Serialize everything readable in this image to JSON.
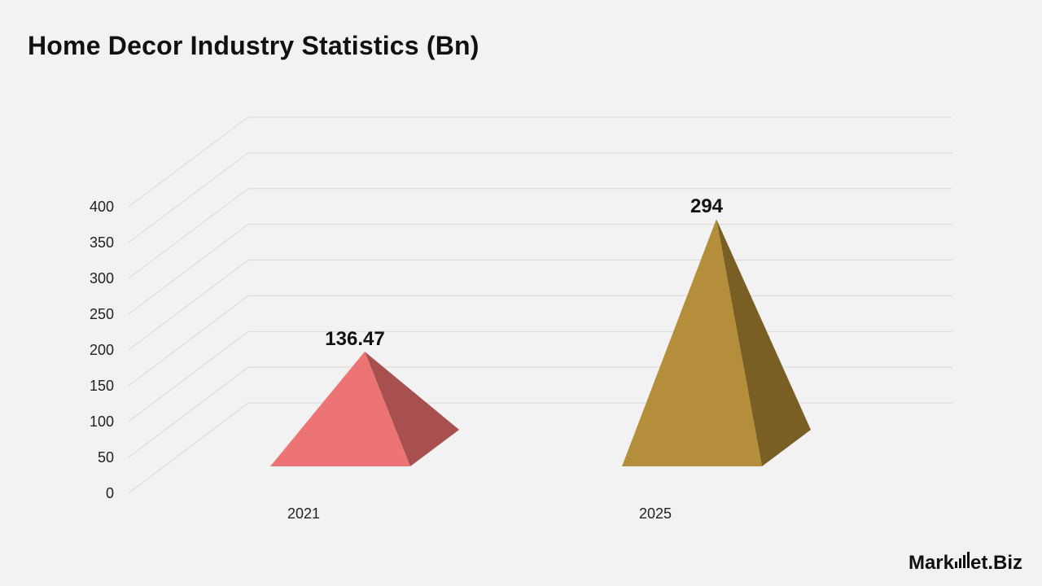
{
  "chart_data": {
    "type": "bar",
    "title": "Home Decor Industry Statistics (Bn)",
    "categories": [
      "2021",
      "2025"
    ],
    "values": [
      136.47,
      294
    ],
    "data_labels": [
      "136.47",
      "294"
    ],
    "ylim": [
      0,
      400
    ],
    "yticks": [
      0,
      50,
      100,
      150,
      200,
      250,
      300,
      350,
      400
    ],
    "ytick_labels": [
      "0",
      "50",
      "100",
      "150",
      "200",
      "250",
      "300",
      "350",
      "400"
    ],
    "grid": true,
    "shape": "pyramid-3d",
    "colors": {
      "2021": {
        "front": "#ed7474",
        "side": "#a85050"
      },
      "2025": {
        "front": "#b58e3c",
        "side": "#7a5f25"
      }
    },
    "legend": "none"
  },
  "brand": {
    "left": "Mark",
    "mid": "et",
    "right": ".Biz",
    "icon": "bar-chart-icon"
  }
}
